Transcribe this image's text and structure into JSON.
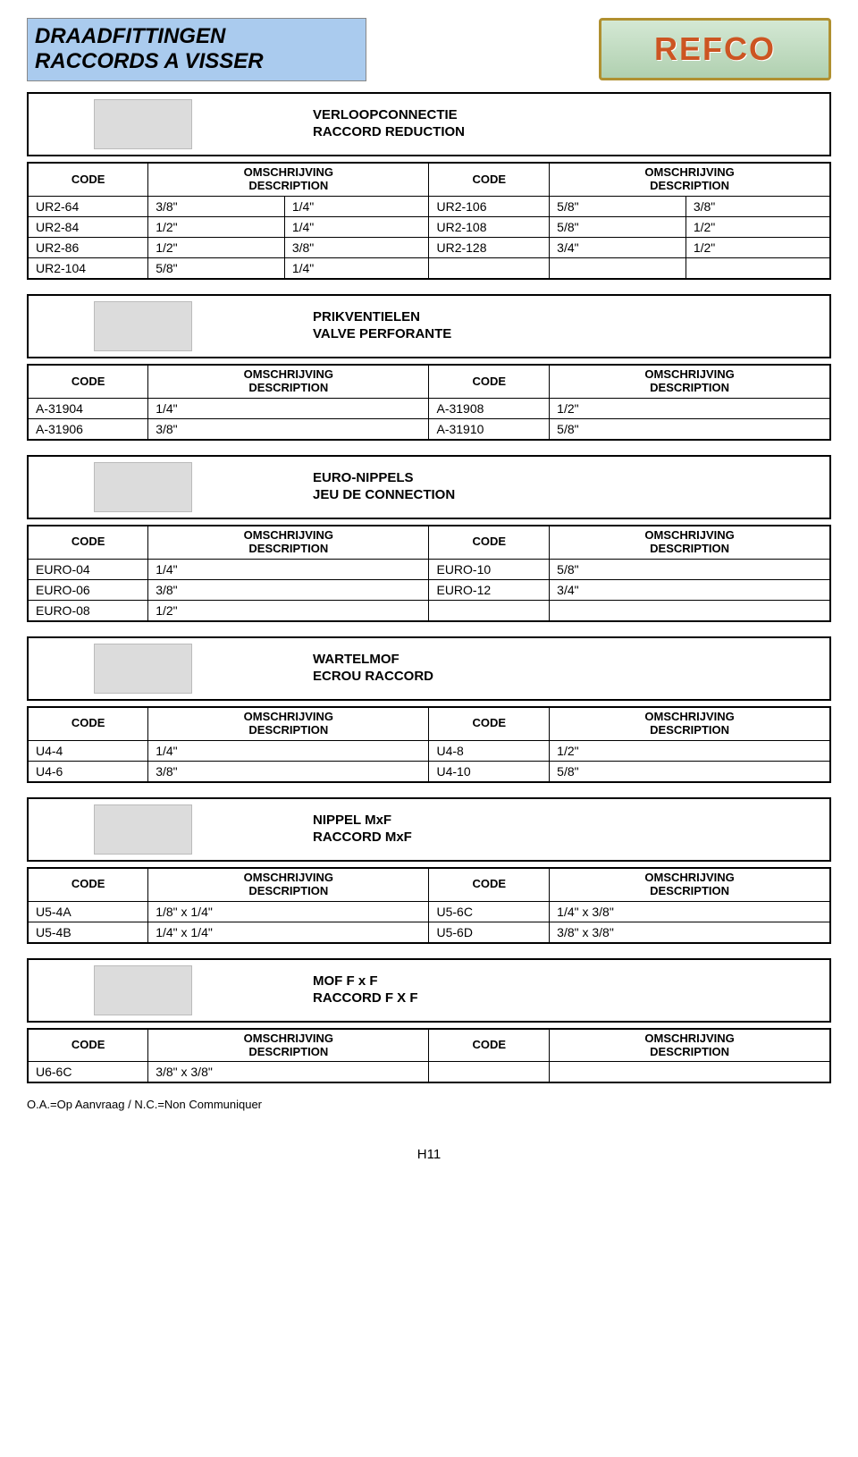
{
  "header": {
    "title_line1": "DRAADFITTINGEN",
    "title_line2": "RACCORDS A VISSER",
    "logo_text": "REFCO",
    "title_bg": "#aacbee",
    "logo_border": "#b09030",
    "logo_text_color": "#cc5522"
  },
  "col_labels": {
    "code": "CODE",
    "desc_l1": "OMSCHRIJVING",
    "desc_l2": "DESCRIPTION"
  },
  "sections": [
    {
      "title_l1": "VERLOOPCONNECTIE",
      "title_l2": "RACCORD REDUCTION",
      "rows": [
        {
          "c1": "UR2-64",
          "d1": "3/8\"",
          "d1b": "1/4\"",
          "c2": "UR2-106",
          "d2": "5/8\"",
          "d2b": "3/8\""
        },
        {
          "c1": "UR2-84",
          "d1": "1/2\"",
          "d1b": "1/4\"",
          "c2": "UR2-108",
          "d2": "5/8\"",
          "d2b": "1/2\""
        },
        {
          "c1": "UR2-86",
          "d1": "1/2\"",
          "d1b": "3/8\"",
          "c2": "UR2-128",
          "d2": "3/4\"",
          "d2b": "1/2\""
        },
        {
          "c1": "UR2-104",
          "d1": "5/8\"",
          "d1b": "1/4\"",
          "c2": "",
          "d2": "",
          "d2b": ""
        }
      ],
      "split_desc": true
    },
    {
      "title_l1": "PRIKVENTIELEN",
      "title_l2": "VALVE PERFORANTE",
      "rows": [
        {
          "c1": "A-31904",
          "d1": "1/4\"",
          "c2": "A-31908",
          "d2": "1/2\""
        },
        {
          "c1": "A-31906",
          "d1": "3/8\"",
          "c2": "A-31910",
          "d2": "5/8\""
        }
      ],
      "split_desc": false
    },
    {
      "title_l1": "EURO-NIPPELS",
      "title_l2": "JEU DE CONNECTION",
      "rows": [
        {
          "c1": "EURO-04",
          "d1": "1/4\"",
          "c2": "EURO-10",
          "d2": "5/8\""
        },
        {
          "c1": "EURO-06",
          "d1": "3/8\"",
          "c2": "EURO-12",
          "d2": "3/4\""
        },
        {
          "c1": "EURO-08",
          "d1": "1/2\"",
          "c2": "",
          "d2": ""
        }
      ],
      "split_desc": false
    },
    {
      "title_l1": "WARTELMOF",
      "title_l2": "ECROU RACCORD",
      "rows": [
        {
          "c1": "U4-4",
          "d1": "1/4\"",
          "c2": "U4-8",
          "d2": "1/2\""
        },
        {
          "c1": "U4-6",
          "d1": "3/8\"",
          "c2": "U4-10",
          "d2": "5/8\""
        }
      ],
      "split_desc": false
    },
    {
      "title_l1": "NIPPEL MxF",
      "title_l2": "RACCORD MxF",
      "rows": [
        {
          "c1": "U5-4A",
          "d1": "1/8\" x 1/4\"",
          "c2": "U5-6C",
          "d2": "1/4\" x 3/8\""
        },
        {
          "c1": "U5-4B",
          "d1": "1/4\" x 1/4\"",
          "c2": "U5-6D",
          "d2": "3/8\" x 3/8\""
        }
      ],
      "split_desc": false
    },
    {
      "title_l1": "MOF F x F",
      "title_l2": "RACCORD F X F",
      "rows": [
        {
          "c1": "U6-6C",
          "d1": "3/8\" x 3/8\"",
          "c2": "",
          "d2": ""
        }
      ],
      "split_desc": false
    }
  ],
  "footer_note": "O.A.=Op Aanvraag / N.C.=Non Communiquer",
  "page_number": "H11"
}
